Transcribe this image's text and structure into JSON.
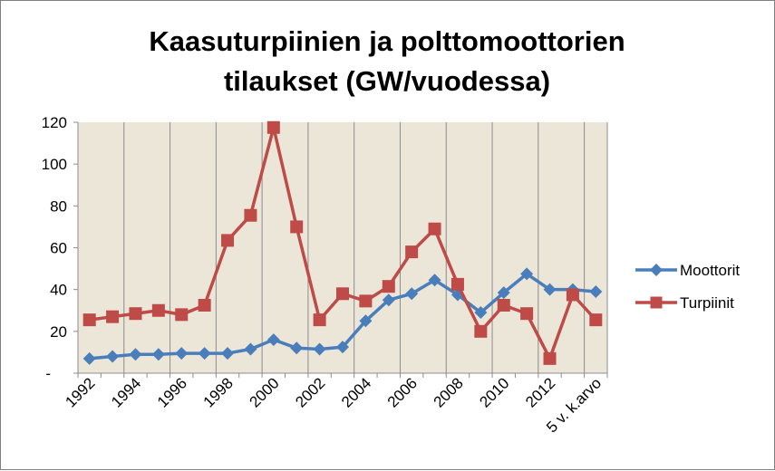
{
  "chart_data": {
    "type": "line",
    "title_lines": [
      "Kaasuturpiinien ja polttomoottorien",
      "tilaukset (GW/vuodessa)"
    ],
    "categories": [
      "1992",
      "1993",
      "1994",
      "1995",
      "1996",
      "1997",
      "1998",
      "1999",
      "2000",
      "2001",
      "2002",
      "2003",
      "2004",
      "2005",
      "2006",
      "2007",
      "2008",
      "2009",
      "2010",
      "2011",
      "2012",
      "2013",
      "5 v. k.arvo"
    ],
    "x_tick_labels": [
      "1992",
      "1994",
      "1996",
      "1998",
      "2000",
      "2002",
      "2004",
      "2006",
      "2008",
      "2010",
      "2012",
      "5 v. k.arvo"
    ],
    "y_ticks": [
      0,
      20,
      40,
      60,
      80,
      100,
      120
    ],
    "y_tick_labels": [
      "-",
      "20",
      "40",
      "60",
      "80",
      "100",
      "120"
    ],
    "ylim": [
      0,
      120
    ],
    "grid": "vertical",
    "legend_position": "right",
    "plot_background": "#ebe6d8",
    "series": [
      {
        "name": "Moottorit",
        "color": "#4a7ebb",
        "marker": "diamond",
        "values": [
          7,
          8,
          9,
          9,
          9.5,
          9.5,
          9.5,
          11.5,
          16,
          12,
          11.5,
          12.5,
          25,
          35,
          38,
          44.5,
          37.5,
          29,
          38.5,
          47.5,
          40,
          40,
          39
        ]
      },
      {
        "name": "Turpiinit",
        "color": "#be4b48",
        "marker": "square",
        "values": [
          25.5,
          27,
          28.5,
          30,
          28,
          32.5,
          63.5,
          75.5,
          117.5,
          70,
          25.5,
          38,
          34.5,
          41.5,
          58,
          69,
          42.5,
          20,
          32.5,
          28.5,
          7,
          37.5,
          25.5
        ]
      }
    ]
  }
}
